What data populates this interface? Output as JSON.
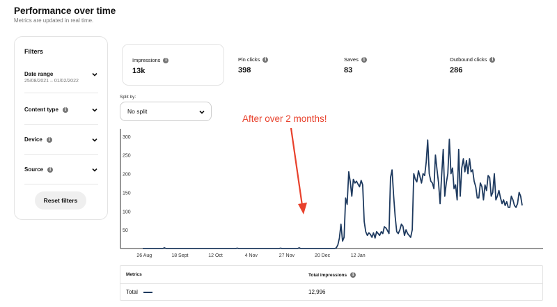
{
  "header": {
    "title": "Performance over time",
    "subtitle": "Metrics are updated in real time."
  },
  "filters": {
    "heading": "Filters",
    "date_range": {
      "label": "Date range",
      "value": "25/08/2021 – 01/02/2022"
    },
    "content_type": {
      "label": "Content type"
    },
    "device": {
      "label": "Device"
    },
    "source": {
      "label": "Source"
    },
    "reset_label": "Reset filters"
  },
  "metrics": [
    {
      "label": "Impressions",
      "value": "13k"
    },
    {
      "label": "Pin clicks",
      "value": "398"
    },
    {
      "label": "Saves",
      "value": "83"
    },
    {
      "label": "Outbound clicks",
      "value": "286"
    }
  ],
  "split": {
    "label": "Split by:",
    "value": "No split"
  },
  "annotation": "After over 2 months!",
  "colors": {
    "line": "#1e3a5f",
    "annotation": "#e8412c"
  },
  "chart_data": {
    "type": "line",
    "ylim": [
      0,
      320
    ],
    "yticks": [
      50,
      100,
      150,
      200,
      250,
      300
    ],
    "xticks": [
      "26 Aug",
      "18 Sept",
      "12 Oct",
      "4 Nov",
      "27 Nov",
      "20 Dec",
      "12 Jan"
    ],
    "series": [
      {
        "values": [
          0,
          0,
          0,
          0,
          0,
          0,
          0,
          0,
          0,
          0,
          0,
          0,
          0,
          0,
          2,
          0,
          0,
          0,
          0,
          0,
          0,
          0,
          0,
          0,
          0,
          0,
          0,
          0,
          0,
          0,
          0,
          0,
          0,
          0,
          0,
          0,
          0,
          0,
          0,
          0,
          0,
          0,
          0,
          0,
          0,
          0,
          0,
          0,
          0,
          0,
          0,
          0,
          0,
          0,
          0,
          0,
          0,
          0,
          0,
          0,
          0,
          1,
          0,
          0,
          0,
          0,
          0,
          0,
          0,
          0,
          0,
          0,
          0,
          0,
          0,
          0,
          0,
          0,
          0,
          0,
          0,
          0,
          0,
          0,
          0,
          0,
          0,
          0,
          0,
          1,
          0,
          0,
          0,
          0,
          0,
          0,
          0,
          0,
          0,
          0,
          0,
          2,
          0,
          0,
          0,
          0,
          0,
          0,
          0,
          0,
          0,
          0,
          0,
          0,
          0,
          0,
          0,
          0,
          0,
          0,
          0,
          0,
          0,
          0,
          0,
          2,
          10,
          28,
          65,
          20,
          30,
          135,
          118,
          205,
          178,
          140,
          185,
          175,
          180,
          172,
          165,
          182,
          170,
          72,
          45,
          35,
          42,
          38,
          30,
          42,
          28,
          45,
          40,
          35,
          45,
          40,
          58,
          55,
          48,
          40,
          190,
          210,
          140,
          85,
          45,
          40,
          50,
          65,
          60,
          35,
          50,
          40,
          35,
          30,
          50,
          200,
          185,
          178,
          208,
          192,
          175,
          200,
          195,
          230,
          290,
          200,
          180,
          175,
          160,
          250,
          210,
          175,
          120,
          195,
          265,
          140,
          175,
          200,
          292,
          200,
          215,
          160,
          170,
          130,
          265,
          140,
          215,
          240,
          205,
          235,
          200,
          240,
          205,
          210,
          180,
          165,
          135,
          135,
          175,
          165,
          130,
          170,
          155,
          195,
          190,
          140,
          150,
          200,
          130,
          140,
          155,
          135,
          120,
          130,
          115,
          125,
          110,
          110,
          140,
          130,
          115,
          110,
          120,
          150,
          140,
          115
        ]
      }
    ]
  },
  "table": {
    "col_metrics": "Metrics",
    "col_total": "Total impressions",
    "row_label": "Total",
    "row_value": "12,996"
  }
}
